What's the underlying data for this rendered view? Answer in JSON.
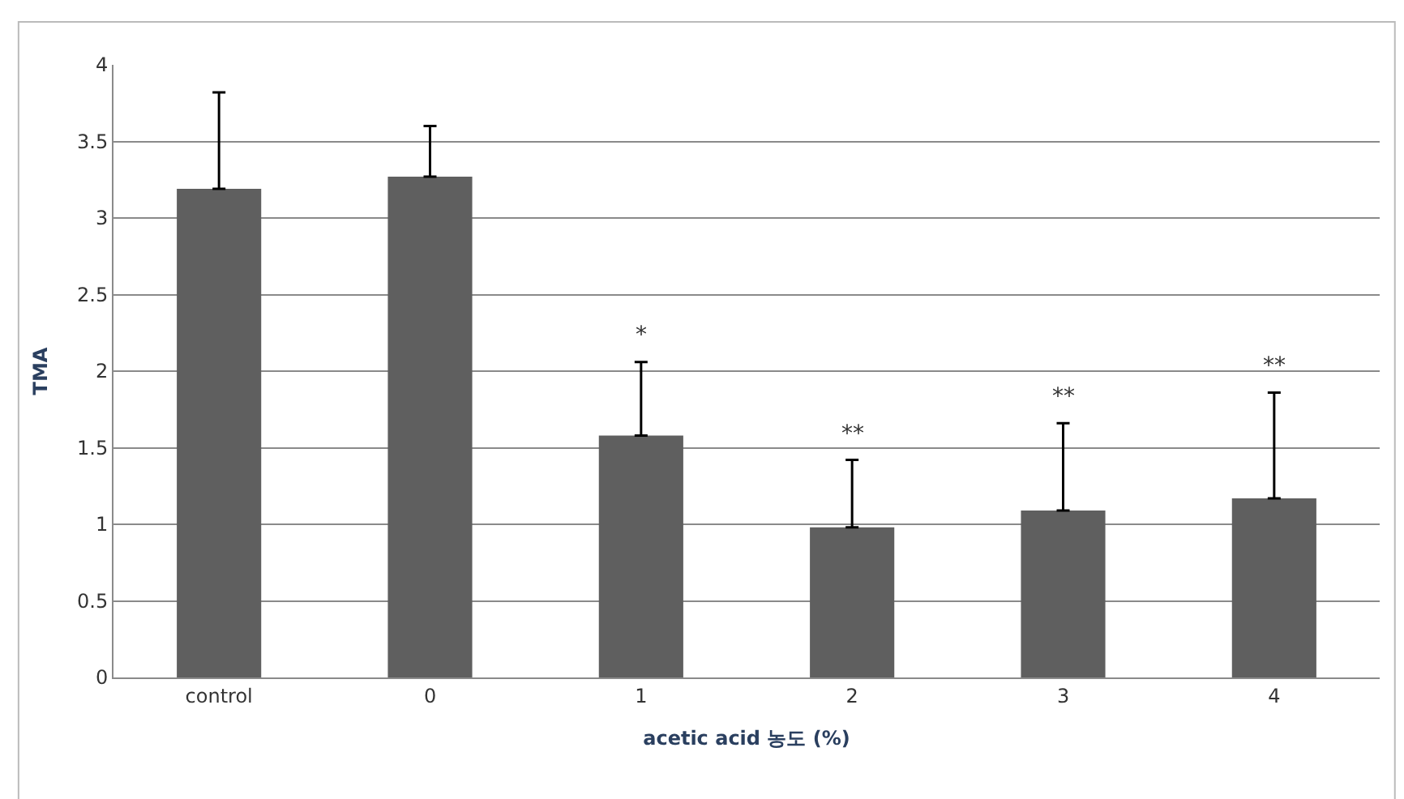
{
  "chart_data": {
    "type": "bar",
    "xlabel": "acetic acid 농도 (%)",
    "ylabel": "TMA",
    "categories": [
      "control",
      "0",
      "1",
      "2",
      "3",
      "4"
    ],
    "values": [
      3.19,
      3.27,
      1.58,
      0.98,
      1.09,
      1.17
    ],
    "color": "#5f5f5f",
    "errors": [
      [
        3.19,
        3.82
      ],
      [
        3.27,
        3.6
      ],
      [
        1.58,
        2.06
      ],
      [
        0.98,
        1.42
      ],
      [
        1.09,
        1.66
      ],
      [
        1.17,
        1.86
      ]
    ],
    "ylim": [
      0,
      4
    ],
    "yticks": [
      0,
      0.5,
      1,
      1.5,
      2,
      2.5,
      3,
      3.5,
      4
    ],
    "grid": "y",
    "annotations": [
      "*",
      "**",
      "**",
      "**"
    ]
  }
}
